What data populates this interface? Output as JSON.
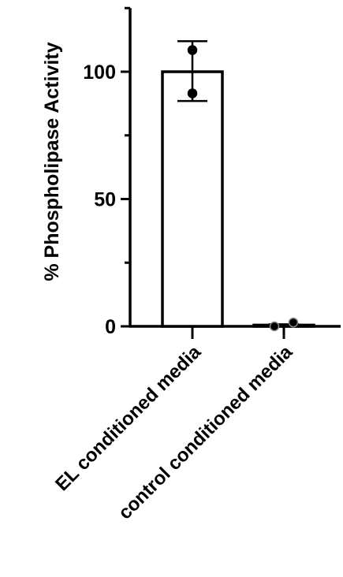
{
  "chart_data": {
    "type": "bar",
    "title": "",
    "xlabel": "",
    "ylabel": "% Phospholipase Activity",
    "ylim": [
      0,
      125
    ],
    "yticks": [
      "0",
      "50",
      "100"
    ],
    "yticks_values": [
      0,
      50,
      100
    ],
    "categories": [
      "EL conditioned media",
      "control conditioned media"
    ],
    "values": [
      100,
      0.5
    ],
    "error_bars": [
      {
        "low": 88.5,
        "high": 112
      },
      {
        "low": 0.2,
        "high": 0.8
      }
    ],
    "points": [
      [
        108.5,
        91.5
      ],
      [
        0,
        1.5
      ]
    ],
    "bar_fill": "#ffffff",
    "bar_stroke": "#000000",
    "point_color": "#000000",
    "grid": false,
    "legend": "none"
  }
}
